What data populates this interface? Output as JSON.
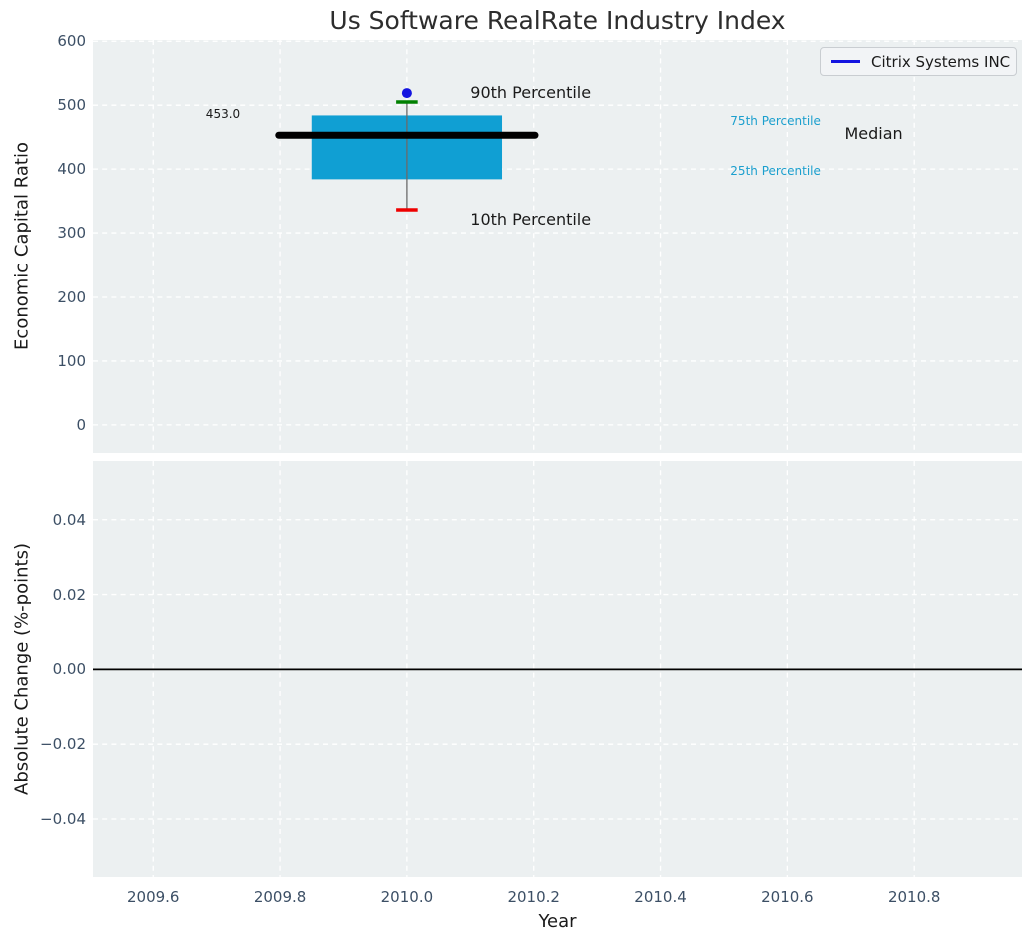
{
  "styles": {
    "panel_bg": "#ecf0f1",
    "grid_color": "#ffffff",
    "tick_color": "#3c4f65",
    "title_color": "#2d2d2d",
    "text_color": "#1a1a1a"
  },
  "chart_data": [
    {
      "type": "boxplot",
      "title": "Us Software RealRate Industry Index",
      "ylabel": "Economic Capital Ratio",
      "xlabel": "",
      "xlim": [
        2009.505,
        2010.97
      ],
      "ylim": [
        -44,
        602
      ],
      "xticks": [
        2009.6,
        2009.8,
        2010.0,
        2010.2,
        2010.4,
        2010.6,
        2010.8
      ],
      "yticks": [
        0,
        100,
        200,
        300,
        400,
        500,
        600
      ],
      "ytick_labels": [
        "0",
        "100",
        "200",
        "300",
        "400",
        "500",
        "600"
      ],
      "grid": true,
      "legend": {
        "position": "upper right",
        "entries": [
          {
            "label": "Citrix Systems INC",
            "color": "#1414e0",
            "type": "line"
          }
        ]
      },
      "box": {
        "x": 2010.0,
        "p10": 336,
        "p25": 384,
        "median": 453,
        "p75": 484,
        "p90": 505,
        "box_half_width": 0.15,
        "median_half_width": 0.202,
        "cap_half_width": 0.017,
        "box_color": "#109fd3",
        "median_color": "#000000",
        "whisker_color": "#6a6a6a",
        "p90_cap_color": "#008000",
        "p10_cap_color": "#ee0000"
      },
      "series": [
        {
          "name": "Citrix Systems INC",
          "marker": "point",
          "color": "#1414e0",
          "x": [
            2010.0
          ],
          "y": [
            519
          ]
        }
      ],
      "annotations": [
        {
          "text": "453.0",
          "x": 2009.71,
          "y": 487,
          "size": 12,
          "color": "#1a1a1a",
          "align": "center"
        },
        {
          "text": "90th Percentile",
          "x": 2010.1,
          "y": 519,
          "size": 16,
          "color": "#1a1a1a",
          "align": "left"
        },
        {
          "text": "10th Percentile",
          "x": 2010.1,
          "y": 320,
          "size": 16,
          "color": "#1a1a1a",
          "align": "left"
        },
        {
          "text": "75th Percentile",
          "x": 2010.51,
          "y": 475,
          "size": 12,
          "color": "#1b9fce",
          "align": "left"
        },
        {
          "text": "25th Percentile",
          "x": 2010.51,
          "y": 397,
          "size": 12,
          "color": "#1b9fce",
          "align": "left"
        },
        {
          "text": "Median",
          "x": 2010.69,
          "y": 455,
          "size": 16,
          "color": "#1a1a1a",
          "align": "left"
        }
      ]
    },
    {
      "type": "line",
      "title": "",
      "ylabel": "Absolute Change (%-points)",
      "xlabel": "Year",
      "xlim": [
        2009.505,
        2010.97
      ],
      "ylim": [
        -0.0555,
        0.0557
      ],
      "xticks": [
        2009.6,
        2009.8,
        2010.0,
        2010.2,
        2010.4,
        2010.6,
        2010.8
      ],
      "xtick_labels": [
        "2009.6",
        "2009.8",
        "2010.0",
        "2010.2",
        "2010.4",
        "2010.6",
        "2010.8"
      ],
      "yticks": [
        0.04,
        0.02,
        0.0,
        -0.02,
        -0.04
      ],
      "ytick_labels": [
        "0.04",
        "0.02",
        "0.00",
        "−0.02",
        "−0.04"
      ],
      "grid": true,
      "zero_line": {
        "y": 0.0,
        "color": "#000000"
      },
      "series": []
    }
  ]
}
